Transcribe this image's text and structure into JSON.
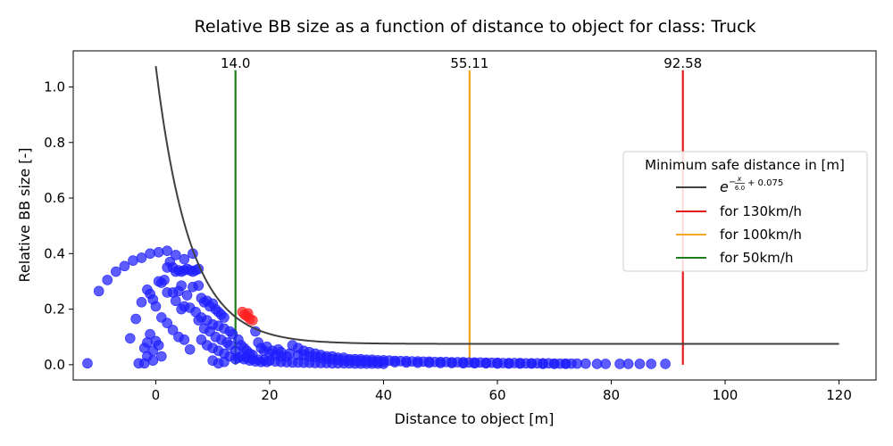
{
  "chart_data": {
    "type": "scatter",
    "title": "Relative BB size as a function of distance to object for class: Truck",
    "xlabel": "Distance to object [m]",
    "ylabel": "Relative BB size [-]",
    "xlim": [
      -14.5,
      126.5
    ],
    "ylim": [
      -0.055,
      1.13
    ],
    "xticks": [
      0,
      20,
      40,
      60,
      80,
      100,
      120
    ],
    "yticks": [
      0.0,
      0.2,
      0.4,
      0.6,
      0.8,
      1.0
    ],
    "grid": false,
    "curve": {
      "label_parts": {
        "base": "e",
        "exp_prefix": "−",
        "exp_num": "x",
        "exp_den": "6.0",
        "plus": "+ 0.075"
      },
      "color": "#404040",
      "a": 6.0,
      "c": 0.075,
      "x_range": [
        0,
        120
      ]
    },
    "thresholds": [
      {
        "name": "for 130km/h",
        "value": 92.58,
        "label": "92.58",
        "color": "#e31a1c"
      },
      {
        "name": "for 100km/h",
        "value": 55.11,
        "label": "55.11",
        "color": "#f5a623"
      },
      {
        "name": "for 50km/h",
        "value": 14.0,
        "label": "14.0",
        "color": "#1a7f1a"
      }
    ],
    "threshold_y_range": [
      0,
      1.06
    ],
    "legend": {
      "title": "Minimum safe distance in [m]",
      "position": "center-right"
    },
    "series": [
      {
        "name": "",
        "color": "#1f1fff",
        "points": [
          [
            -12,
            0.005
          ],
          [
            -10,
            0.265
          ],
          [
            -8.5,
            0.305
          ],
          [
            -7,
            0.335
          ],
          [
            -5.5,
            0.355
          ],
          [
            -4,
            0.375
          ],
          [
            -2.5,
            0.385
          ],
          [
            -1,
            0.4
          ],
          [
            0.5,
            0.405
          ],
          [
            2,
            0.41
          ],
          [
            3.5,
            0.395
          ],
          [
            5,
            0.38
          ],
          [
            6.5,
            0.4
          ],
          [
            -4.5,
            0.095
          ],
          [
            -3,
            0.005
          ],
          [
            -2,
            0.005
          ],
          [
            -3.5,
            0.165
          ],
          [
            -2.5,
            0.225
          ],
          [
            -1.5,
            0.27
          ],
          [
            -1,
            0.255
          ],
          [
            -0.5,
            0.235
          ],
          [
            0,
            0.21
          ],
          [
            0.5,
            0.3
          ],
          [
            1,
            0.295
          ],
          [
            1.5,
            0.305
          ],
          [
            2,
            0.35
          ],
          [
            2.5,
            0.37
          ],
          [
            3,
            0.35
          ],
          [
            3.5,
            0.335
          ],
          [
            4,
            0.34
          ],
          [
            4.5,
            0.335
          ],
          [
            5,
            0.34
          ],
          [
            5.5,
            0.345
          ],
          [
            6,
            0.34
          ],
          [
            6.5,
            0.335
          ],
          [
            7,
            0.34
          ],
          [
            7.5,
            0.345
          ],
          [
            2,
            0.26
          ],
          [
            3,
            0.26
          ],
          [
            4,
            0.265
          ],
          [
            4.5,
            0.285
          ],
          [
            5.5,
            0.25
          ],
          [
            6.5,
            0.28
          ],
          [
            7.5,
            0.285
          ],
          [
            8,
            0.24
          ],
          [
            8.5,
            0.225
          ],
          [
            9,
            0.23
          ],
          [
            9.5,
            0.21
          ],
          [
            10,
            0.22
          ],
          [
            10.5,
            0.2
          ],
          [
            11,
            0.19
          ],
          [
            11.5,
            0.18
          ],
          [
            12,
            0.17
          ],
          [
            3.5,
            0.23
          ],
          [
            4.5,
            0.2
          ],
          [
            5,
            0.21
          ],
          [
            6,
            0.205
          ],
          [
            7,
            0.19
          ],
          [
            8,
            0.17
          ],
          [
            9,
            0.16
          ],
          [
            10,
            0.145
          ],
          [
            11,
            0.14
          ],
          [
            12,
            0.13
          ],
          [
            13,
            0.12
          ],
          [
            1,
            0.17
          ],
          [
            2,
            0.15
          ],
          [
            3,
            0.125
          ],
          [
            4,
            0.1
          ],
          [
            5,
            0.09
          ],
          [
            6,
            0.055
          ],
          [
            -1.5,
            0.08
          ],
          [
            -1,
            0.11
          ],
          [
            -0.5,
            0.05
          ],
          [
            0,
            0.085
          ],
          [
            0.5,
            0.07
          ],
          [
            1,
            0.03
          ],
          [
            -1.5,
            0.03
          ],
          [
            -0.5,
            0.015
          ],
          [
            -2,
            0.06
          ],
          [
            7.5,
            0.16
          ],
          [
            8.5,
            0.13
          ],
          [
            9.5,
            0.12
          ],
          [
            10.5,
            0.1
          ],
          [
            11.5,
            0.09
          ],
          [
            12.5,
            0.08
          ],
          [
            13,
            0.07
          ],
          [
            8,
            0.09
          ],
          [
            9,
            0.07
          ],
          [
            10,
            0.06
          ],
          [
            11,
            0.05
          ],
          [
            12,
            0.04
          ],
          [
            13,
            0.03
          ],
          [
            14,
            0.02
          ],
          [
            10,
            0.015
          ],
          [
            11,
            0.005
          ],
          [
            12,
            0.01
          ],
          [
            13.5,
            0.11
          ],
          [
            14,
            0.05
          ],
          [
            14.5,
            0.09
          ],
          [
            15,
            0.07
          ],
          [
            15.5,
            0.06
          ],
          [
            16,
            0.05
          ],
          [
            16.5,
            0.04
          ],
          [
            17,
            0.035
          ],
          [
            17.5,
            0.12
          ],
          [
            18,
            0.08
          ],
          [
            18.5,
            0.06
          ],
          [
            19,
            0.05
          ],
          [
            20,
            0.04
          ],
          [
            21,
            0.035
          ],
          [
            22,
            0.03
          ],
          [
            23,
            0.03
          ],
          [
            24,
            0.07
          ],
          [
            25,
            0.06
          ],
          [
            26,
            0.05
          ],
          [
            27,
            0.045
          ],
          [
            28,
            0.04
          ],
          [
            29,
            0.035
          ],
          [
            30,
            0.03
          ],
          [
            31,
            0.03
          ],
          [
            32,
            0.025
          ],
          [
            33,
            0.025
          ],
          [
            34,
            0.02
          ],
          [
            35,
            0.02
          ],
          [
            36,
            0.02
          ],
          [
            37,
            0.018
          ],
          [
            38,
            0.018
          ],
          [
            39,
            0.016
          ],
          [
            40,
            0.016
          ],
          [
            41,
            0.015
          ],
          [
            42,
            0.014
          ],
          [
            43,
            0.013
          ],
          [
            44,
            0.013
          ],
          [
            45,
            0.012
          ],
          [
            46,
            0.012
          ],
          [
            47,
            0.011
          ],
          [
            48,
            0.011
          ],
          [
            49,
            0.01
          ],
          [
            50,
            0.01
          ],
          [
            51,
            0.01
          ],
          [
            52,
            0.009
          ],
          [
            53,
            0.009
          ],
          [
            54,
            0.009
          ],
          [
            55,
            0.008
          ],
          [
            56,
            0.008
          ],
          [
            57,
            0.008
          ],
          [
            58,
            0.007
          ],
          [
            59,
            0.007
          ],
          [
            60,
            0.007
          ],
          [
            61,
            0.006
          ],
          [
            62,
            0.006
          ],
          [
            63,
            0.006
          ],
          [
            64,
            0.006
          ],
          [
            65,
            0.005
          ],
          [
            66,
            0.005
          ],
          [
            67,
            0.005
          ],
          [
            68,
            0.005
          ],
          [
            69,
            0.005
          ],
          [
            70,
            0.004
          ],
          [
            71,
            0.004
          ],
          [
            72,
            0.004
          ],
          [
            73,
            0.004
          ],
          [
            74,
            0.004
          ],
          [
            75.5,
            0.004
          ],
          [
            77.5,
            0.003
          ],
          [
            79,
            0.003
          ],
          [
            81.5,
            0.003
          ],
          [
            83,
            0.003
          ],
          [
            85,
            0.003
          ],
          [
            87,
            0.003
          ],
          [
            89.5,
            0.003
          ],
          [
            20,
            0.015
          ],
          [
            21,
            0.012
          ],
          [
            22,
            0.01
          ],
          [
            23,
            0.009
          ],
          [
            24,
            0.008
          ],
          [
            25,
            0.008
          ],
          [
            26,
            0.007
          ],
          [
            27,
            0.007
          ],
          [
            28,
            0.006
          ],
          [
            29,
            0.006
          ],
          [
            30,
            0.006
          ],
          [
            31,
            0.005
          ],
          [
            32,
            0.005
          ],
          [
            33,
            0.005
          ],
          [
            34,
            0.005
          ],
          [
            35,
            0.004
          ],
          [
            36,
            0.004
          ],
          [
            37,
            0.004
          ],
          [
            38,
            0.004
          ],
          [
            39,
            0.004
          ],
          [
            40,
            0.003
          ],
          [
            16,
            0.025
          ],
          [
            17,
            0.02
          ],
          [
            18,
            0.018
          ],
          [
            19,
            0.016
          ],
          [
            15,
            0.03
          ],
          [
            14.5,
            0.025
          ],
          [
            15.5,
            0.02
          ],
          [
            16.5,
            0.015
          ],
          [
            17.5,
            0.012
          ],
          [
            18.5,
            0.01
          ],
          [
            19.5,
            0.01
          ],
          [
            26,
            0.035
          ],
          [
            27,
            0.03
          ],
          [
            28,
            0.028
          ],
          [
            29,
            0.025
          ],
          [
            30,
            0.022
          ],
          [
            31,
            0.02
          ],
          [
            32,
            0.018
          ],
          [
            33,
            0.016
          ],
          [
            34,
            0.015
          ],
          [
            35,
            0.014
          ],
          [
            36,
            0.013
          ],
          [
            37,
            0.012
          ],
          [
            38,
            0.011
          ],
          [
            39,
            0.01
          ],
          [
            40,
            0.01
          ],
          [
            42,
            0.009
          ],
          [
            44,
            0.008
          ],
          [
            46,
            0.007
          ],
          [
            48,
            0.007
          ],
          [
            50,
            0.006
          ],
          [
            52,
            0.006
          ],
          [
            54,
            0.005
          ],
          [
            56,
            0.005
          ],
          [
            58,
            0.005
          ],
          [
            60,
            0.004
          ],
          [
            62,
            0.004
          ],
          [
            64,
            0.004
          ],
          [
            66,
            0.004
          ],
          [
            68,
            0.003
          ],
          [
            70,
            0.003
          ],
          [
            72,
            0.003
          ],
          [
            22,
            0.045
          ],
          [
            23.5,
            0.04
          ],
          [
            25,
            0.035
          ],
          [
            20.5,
            0.05
          ],
          [
            19.5,
            0.065
          ],
          [
            21.5,
            0.055
          ]
        ]
      },
      {
        "name": "",
        "color": "#ff2020",
        "points": [
          [
            15.2,
            0.19
          ],
          [
            15.6,
            0.18
          ],
          [
            16,
            0.175
          ],
          [
            16.5,
            0.165
          ],
          [
            17,
            0.16
          ],
          [
            16.2,
            0.185
          ]
        ]
      }
    ]
  }
}
